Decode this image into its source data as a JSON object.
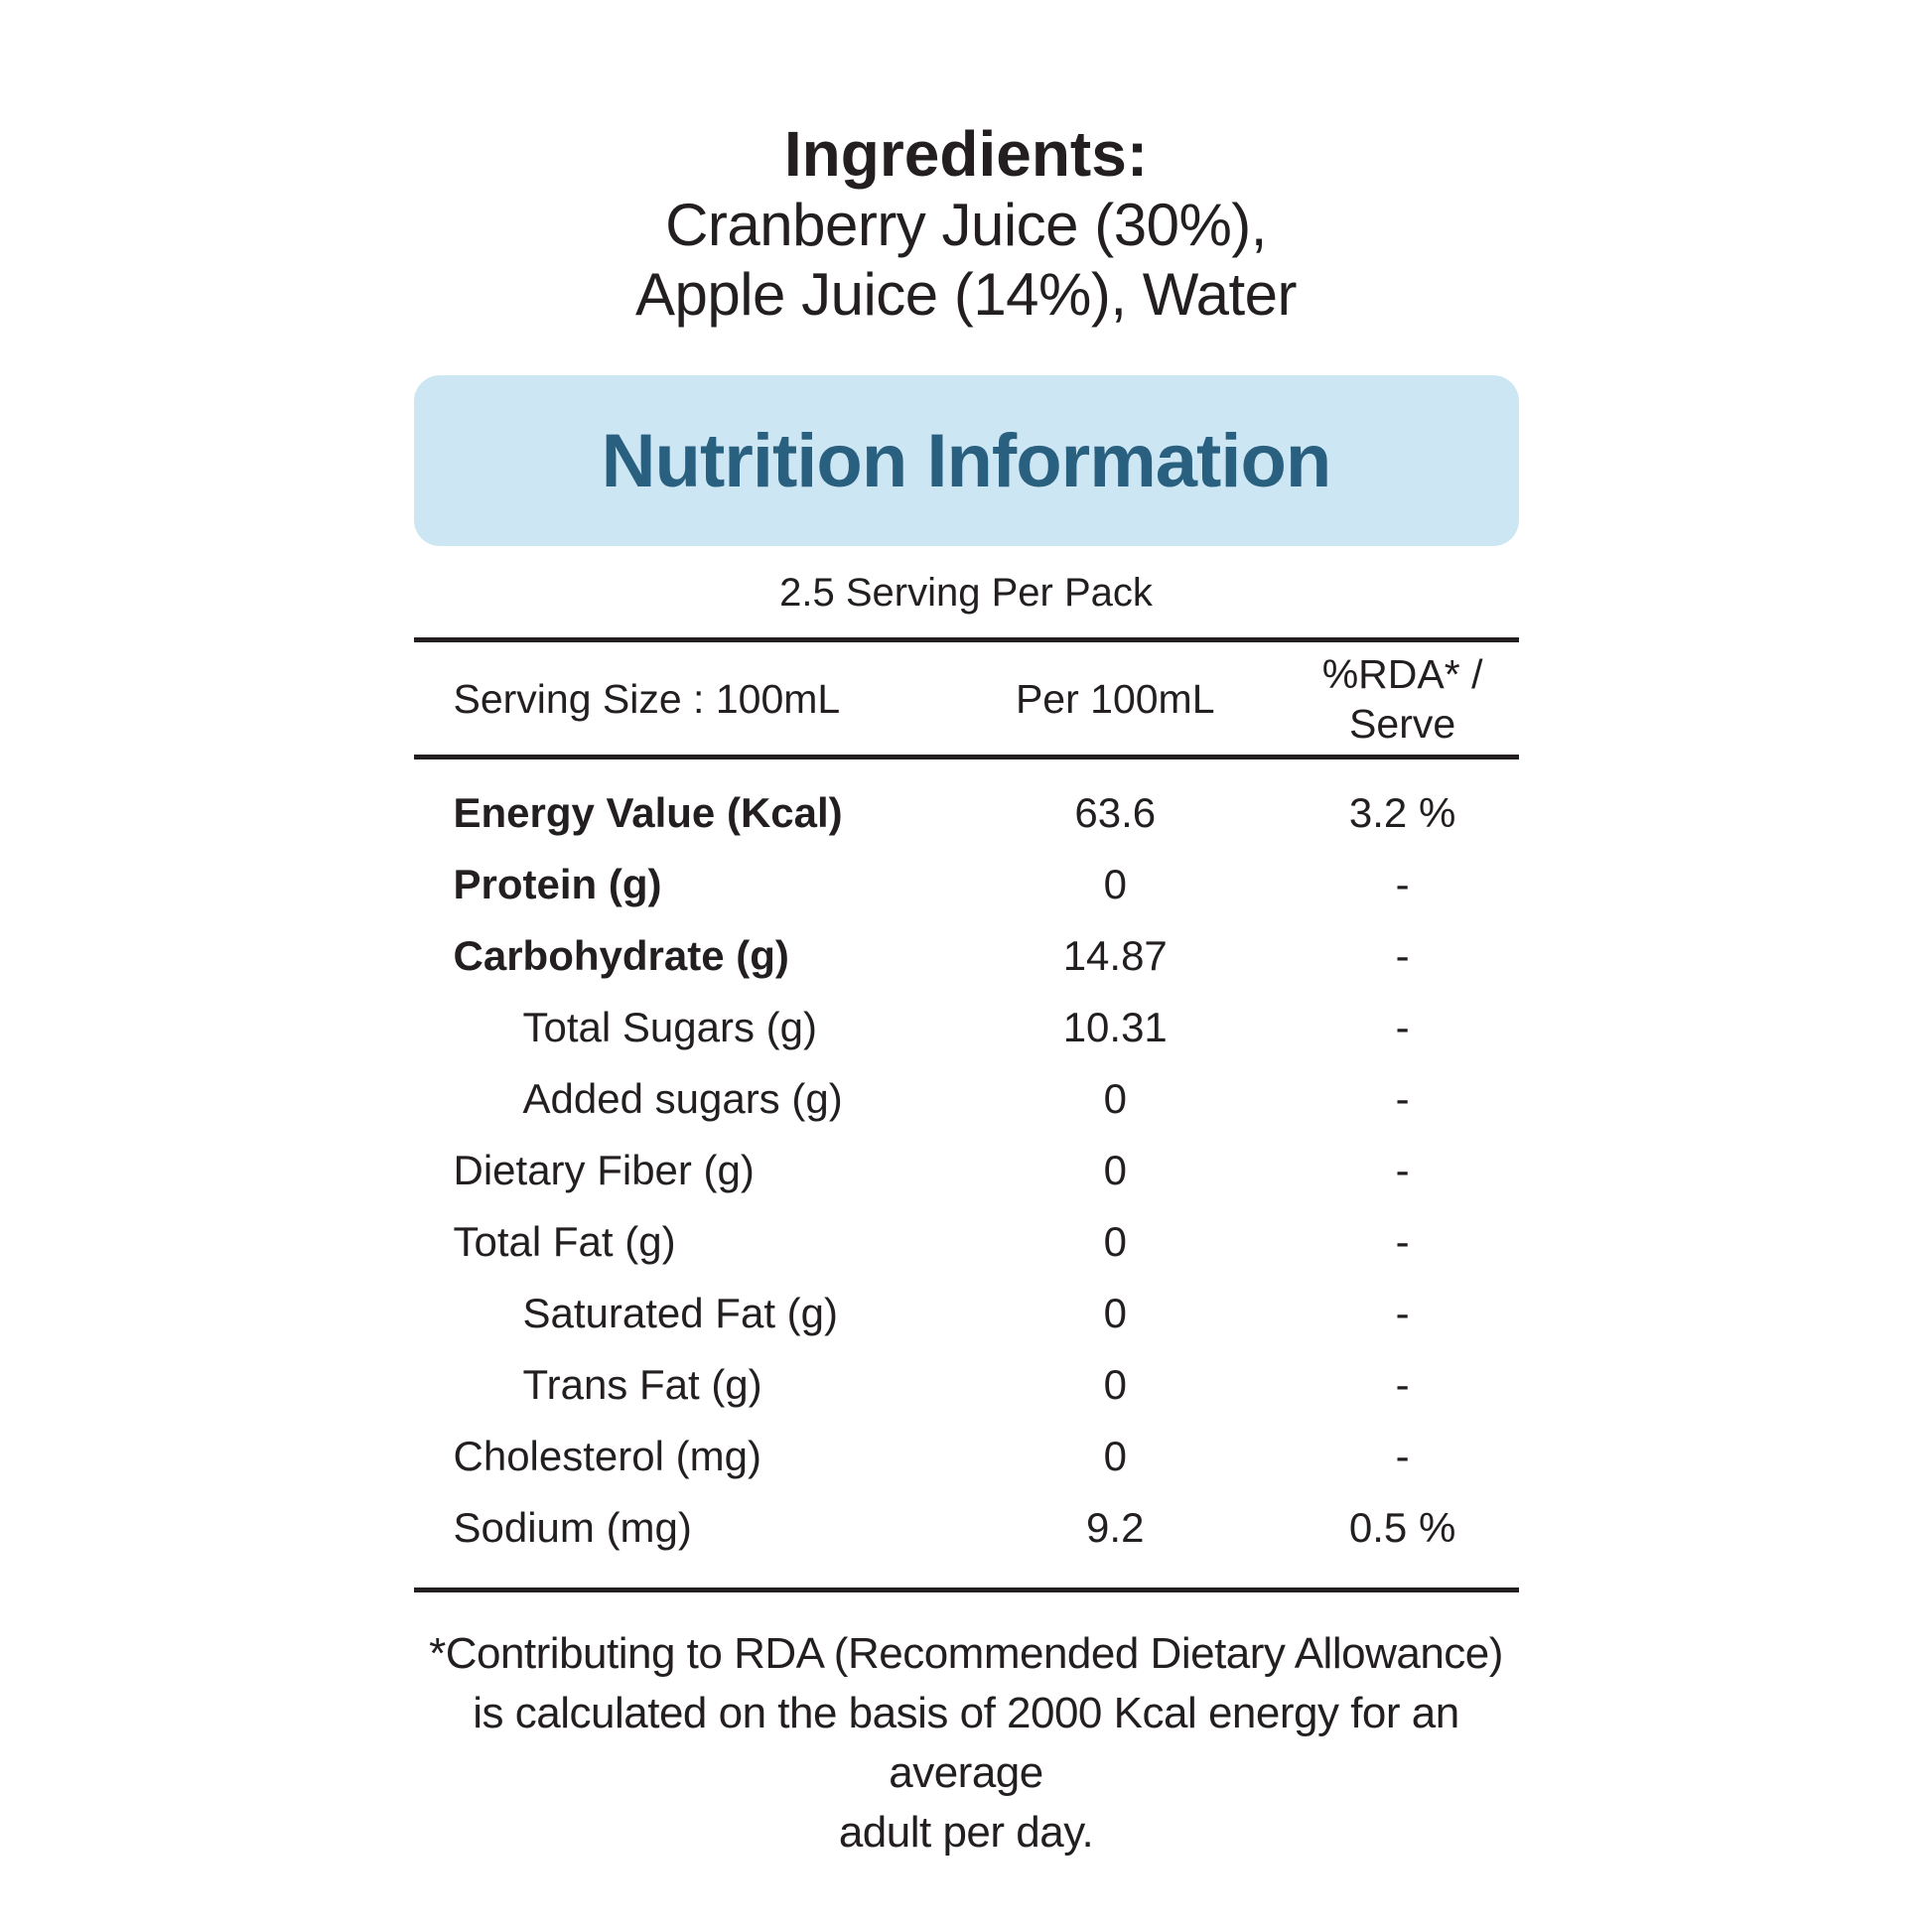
{
  "colors": {
    "text": "#231f20",
    "banner_bg": "#cde6f3",
    "banner_text": "#295f7f",
    "rule": "#231f20"
  },
  "ingredients": {
    "heading": "Ingredients:",
    "lines": [
      "Cranberry Juice (30%),",
      "Apple Juice (14%), Water"
    ]
  },
  "banner": {
    "title": "Nutrition Information"
  },
  "servings": "2.5 Serving Per Pack",
  "table": {
    "col1_header": "Serving Size : 100mL",
    "col2_header": "Per 100mL",
    "col3_header_line1": "%RDA* /",
    "col3_header_line2": "Serve",
    "rows": [
      {
        "label": "Energy Value (Kcal)",
        "per_100ml": "63.6",
        "rda": "3.2 %",
        "bold": true,
        "indent": false
      },
      {
        "label": "Protein (g)",
        "per_100ml": "0",
        "rda": "-",
        "bold": true,
        "indent": false
      },
      {
        "label": "Carbohydrate (g)",
        "per_100ml": "14.87",
        "rda": "-",
        "bold": true,
        "indent": false
      },
      {
        "label": "Total Sugars (g)",
        "per_100ml": "10.31",
        "rda": "-",
        "bold": false,
        "indent": true
      },
      {
        "label": "Added sugars (g)",
        "per_100ml": "0",
        "rda": "-",
        "bold": false,
        "indent": true
      },
      {
        "label": "Dietary Fiber (g)",
        "per_100ml": "0",
        "rda": "-",
        "bold": false,
        "indent": false
      },
      {
        "label": "Total Fat (g)",
        "per_100ml": "0",
        "rda": "-",
        "bold": false,
        "indent": false
      },
      {
        "label": "Saturated Fat (g)",
        "per_100ml": "0",
        "rda": "-",
        "bold": false,
        "indent": true
      },
      {
        "label": "Trans Fat (g)",
        "per_100ml": "0",
        "rda": "-",
        "bold": false,
        "indent": true
      },
      {
        "label": "Cholesterol (mg)",
        "per_100ml": "0",
        "rda": "-",
        "bold": false,
        "indent": false
      },
      {
        "label": "Sodium (mg)",
        "per_100ml": "9.2",
        "rda": "0.5 %",
        "bold": false,
        "indent": false
      }
    ]
  },
  "footnote": {
    "lines": [
      "*Contributing to RDA (Recommended Dietary Allowance)",
      "is calculated on the basis of 2000 Kcal energy for an average",
      "adult per day."
    ]
  }
}
